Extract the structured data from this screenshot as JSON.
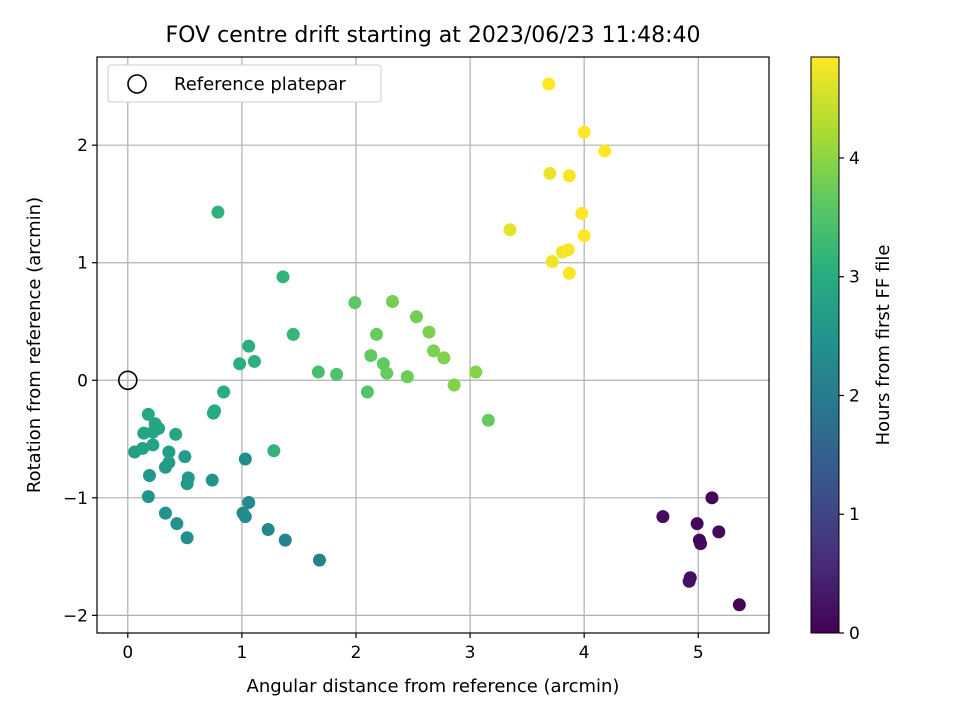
{
  "chart_data": {
    "type": "scatter",
    "title": "FOV centre drift starting at 2023/06/23 11:48:40",
    "xlabel": "Angular distance from reference (arcmin)",
    "ylabel": "Rotation from reference (arcmin)",
    "xlim": [
      -0.27,
      5.62
    ],
    "ylim": [
      -2.15,
      2.75
    ],
    "xticks": [
      0,
      1,
      2,
      3,
      4,
      5
    ],
    "yticks": [
      -2,
      -1,
      0,
      1,
      2
    ],
    "grid": true,
    "legend": {
      "position": "top-left",
      "entries": [
        "Reference platepar"
      ]
    },
    "reference_point": {
      "x": 0,
      "y": 0,
      "label": "Reference platepar",
      "marker": "open-circle"
    },
    "colorbar": {
      "label": "Hours from first FF file",
      "colormap": "viridis",
      "range": [
        0,
        4.85
      ],
      "ticks": [
        0,
        1,
        2,
        3,
        4
      ]
    },
    "series": [
      {
        "points": [
          {
            "x": 4.69,
            "y": -1.16,
            "c": 0.15
          },
          {
            "x": 4.99,
            "y": -1.22,
            "c": 0.1
          },
          {
            "x": 5.12,
            "y": -1.0,
            "c": 0.05
          },
          {
            "x": 5.18,
            "y": -1.29,
            "c": 0.12
          },
          {
            "x": 5.01,
            "y": -1.36,
            "c": 0.08
          },
          {
            "x": 5.02,
            "y": -1.39,
            "c": 0.1
          },
          {
            "x": 4.93,
            "y": -1.68,
            "c": 0.15
          },
          {
            "x": 4.92,
            "y": -1.71,
            "c": 0.2
          },
          {
            "x": 5.36,
            "y": -1.91,
            "c": 0.05
          },
          {
            "x": 1.68,
            "y": -1.53,
            "c": 2.1
          },
          {
            "x": 1.38,
            "y": -1.36,
            "c": 2.2
          },
          {
            "x": 1.23,
            "y": -1.27,
            "c": 2.25
          },
          {
            "x": 1.06,
            "y": -1.04,
            "c": 2.3
          },
          {
            "x": 1.01,
            "y": -1.13,
            "c": 2.3
          },
          {
            "x": 1.03,
            "y": -1.16,
            "c": 2.35
          },
          {
            "x": 1.03,
            "y": -0.67,
            "c": 2.35
          },
          {
            "x": 0.52,
            "y": -1.34,
            "c": 2.4
          },
          {
            "x": 0.43,
            "y": -1.22,
            "c": 2.45
          },
          {
            "x": 0.33,
            "y": -1.13,
            "c": 2.45
          },
          {
            "x": 0.18,
            "y": -0.99,
            "c": 2.5
          },
          {
            "x": 0.19,
            "y": -0.81,
            "c": 2.55
          },
          {
            "x": 0.74,
            "y": -0.85,
            "c": 2.5
          },
          {
            "x": 0.52,
            "y": -0.88,
            "c": 2.55
          },
          {
            "x": 0.53,
            "y": -0.83,
            "c": 2.6
          },
          {
            "x": 0.33,
            "y": -0.74,
            "c": 2.6
          },
          {
            "x": 0.36,
            "y": -0.7,
            "c": 2.65
          },
          {
            "x": 0.36,
            "y": -0.61,
            "c": 2.7
          },
          {
            "x": 0.5,
            "y": -0.65,
            "c": 2.65
          },
          {
            "x": 0.06,
            "y": -0.61,
            "c": 2.7
          },
          {
            "x": 0.13,
            "y": -0.58,
            "c": 2.75
          },
          {
            "x": 0.22,
            "y": -0.55,
            "c": 2.75
          },
          {
            "x": 0.14,
            "y": -0.45,
            "c": 2.8
          },
          {
            "x": 0.22,
            "y": -0.44,
            "c": 2.8
          },
          {
            "x": 0.27,
            "y": -0.41,
            "c": 2.85
          },
          {
            "x": 0.24,
            "y": -0.37,
            "c": 2.85
          },
          {
            "x": 0.42,
            "y": -0.46,
            "c": 2.85
          },
          {
            "x": 0.18,
            "y": -0.29,
            "c": 2.9
          },
          {
            "x": 0.75,
            "y": -0.28,
            "c": 2.9
          },
          {
            "x": 0.76,
            "y": -0.26,
            "c": 2.95
          },
          {
            "x": 0.84,
            "y": -0.1,
            "c": 3.0
          },
          {
            "x": 1.28,
            "y": -0.6,
            "c": 3.15
          },
          {
            "x": 0.98,
            "y": 0.14,
            "c": 3.05
          },
          {
            "x": 1.06,
            "y": 0.29,
            "c": 3.05
          },
          {
            "x": 1.11,
            "y": 0.16,
            "c": 3.1
          },
          {
            "x": 0.79,
            "y": 1.43,
            "c": 3.1
          },
          {
            "x": 1.36,
            "y": 0.88,
            "c": 3.15
          },
          {
            "x": 1.45,
            "y": 0.39,
            "c": 3.2
          },
          {
            "x": 1.67,
            "y": 0.07,
            "c": 3.4
          },
          {
            "x": 1.83,
            "y": 0.05,
            "c": 3.45
          },
          {
            "x": 1.99,
            "y": 0.66,
            "c": 3.6
          },
          {
            "x": 2.1,
            "y": -0.1,
            "c": 3.5
          },
          {
            "x": 2.13,
            "y": 0.21,
            "c": 3.65
          },
          {
            "x": 2.18,
            "y": 0.39,
            "c": 3.7
          },
          {
            "x": 2.24,
            "y": 0.14,
            "c": 3.65
          },
          {
            "x": 2.27,
            "y": 0.06,
            "c": 3.7
          },
          {
            "x": 2.32,
            "y": 0.67,
            "c": 3.8
          },
          {
            "x": 2.45,
            "y": 0.03,
            "c": 3.75
          },
          {
            "x": 2.53,
            "y": 0.54,
            "c": 3.8
          },
          {
            "x": 2.64,
            "y": 0.41,
            "c": 3.85
          },
          {
            "x": 2.68,
            "y": 0.25,
            "c": 3.85
          },
          {
            "x": 2.77,
            "y": 0.19,
            "c": 3.9
          },
          {
            "x": 2.86,
            "y": -0.04,
            "c": 3.9
          },
          {
            "x": 3.05,
            "y": 0.07,
            "c": 3.95
          },
          {
            "x": 3.16,
            "y": -0.34,
            "c": 3.7
          },
          {
            "x": 3.35,
            "y": 1.28,
            "c": 4.65
          },
          {
            "x": 3.69,
            "y": 2.52,
            "c": 4.85
          },
          {
            "x": 3.7,
            "y": 1.76,
            "c": 4.7
          },
          {
            "x": 3.72,
            "y": 1.01,
            "c": 4.75
          },
          {
            "x": 3.81,
            "y": 1.09,
            "c": 4.75
          },
          {
            "x": 3.86,
            "y": 1.11,
            "c": 4.8
          },
          {
            "x": 3.87,
            "y": 1.74,
            "c": 4.8
          },
          {
            "x": 3.87,
            "y": 0.91,
            "c": 4.8
          },
          {
            "x": 3.98,
            "y": 1.42,
            "c": 4.85
          },
          {
            "x": 4.0,
            "y": 1.23,
            "c": 4.85
          },
          {
            "x": 4.0,
            "y": 2.11,
            "c": 4.85
          },
          {
            "x": 4.18,
            "y": 1.95,
            "c": 4.85
          }
        ]
      }
    ]
  }
}
